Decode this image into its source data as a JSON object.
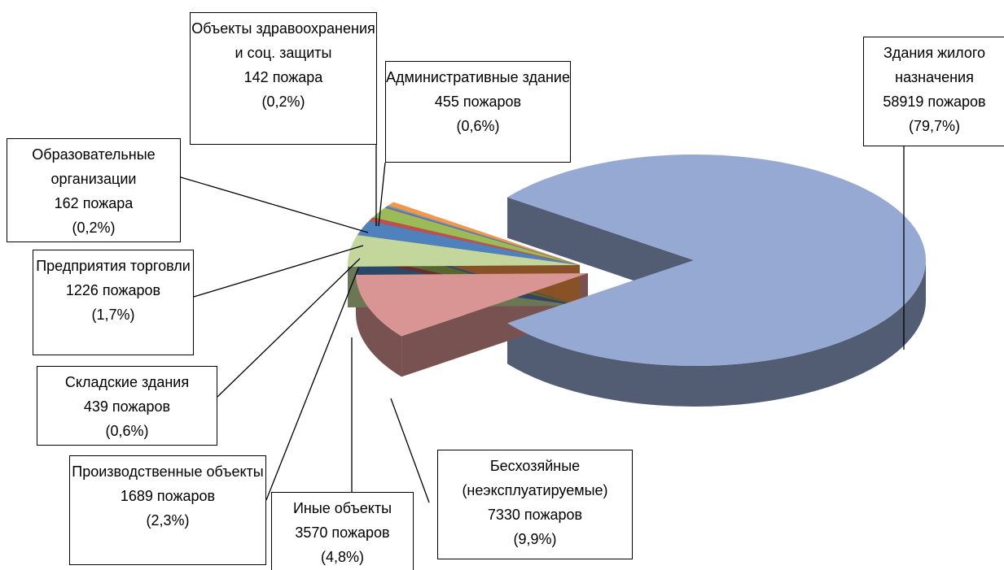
{
  "chart_data": {
    "type": "pie3d",
    "categories": [
      "Здания жилого назначения",
      "Бесхозяйные (неэксплуатируемые)",
      "Иные объекты",
      "Производственные объекты",
      "Складские здания",
      "Предприятия торговли",
      "Образовательные организации",
      "Объекты здравоохранения и соц. защиты",
      "Административные здание"
    ],
    "values": [
      58919,
      7330,
      3570,
      1689,
      439,
      1226,
      162,
      142,
      455
    ],
    "value_labels": [
      "58919 пожаров",
      "7330 пожаров",
      "3570 пожаров",
      "1689 пожаров",
      "439 пожаров",
      "1226 пожаров",
      "162 пожара",
      "142 пожара",
      "455 пожаров"
    ],
    "percents": [
      79.7,
      9.9,
      4.8,
      2.3,
      0.6,
      1.7,
      0.2,
      0.2,
      0.6
    ],
    "percent_labels": [
      "(79,7%)",
      "(9,9%)",
      "(4,8%)",
      "(2,3%)",
      "(0,6%)",
      "(1,7%)",
      "(0,2%)",
      "(0,2%)",
      "(0,6%)"
    ],
    "colors": [
      "#95a9d2",
      "#d99594",
      "#c3d69b",
      "#4f81bd",
      "#c0504d",
      "#9bbb59",
      "#8064a2",
      "#4bacc6",
      "#f79646"
    ]
  }
}
